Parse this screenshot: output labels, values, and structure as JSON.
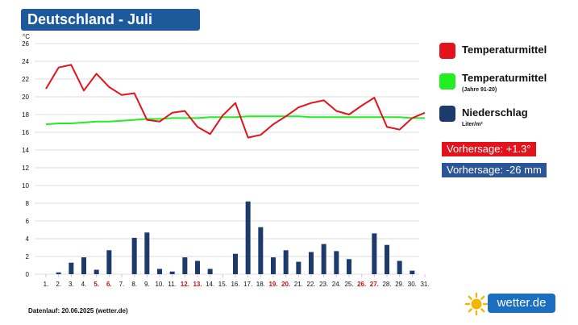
{
  "header": {
    "title": "Deutschland - Juli"
  },
  "legend": {
    "temp": {
      "label": "Temperaturmittel",
      "color": "#e3131b"
    },
    "clim": {
      "label": "Temperaturmittel",
      "sub": "(Jahre 91-20)",
      "color": "#22ee22"
    },
    "precip": {
      "label": "Niederschlag",
      "sub": "Liter/m²",
      "color": "#1c3a6b"
    }
  },
  "badges": {
    "temp": {
      "label": "Vorhersage: +1.3°",
      "color": "#e3131b"
    },
    "precip": {
      "label": "Vorhersage: -26 mm",
      "color": "#2b5597"
    }
  },
  "footer": {
    "text": "Datenlauf: 20.06.2025 (wetter.de)"
  },
  "logo": {
    "text": "wetter.de"
  },
  "chart_data": {
    "type": "line+bar",
    "unit": "°C",
    "ylim": [
      0,
      26
    ],
    "yticks": [
      0,
      2,
      4,
      6,
      8,
      10,
      12,
      14,
      16,
      18,
      20,
      22,
      24,
      26
    ],
    "grid": true,
    "categories": [
      "1.",
      "2.",
      "3.",
      "4.",
      "5.",
      "6.",
      "7.",
      "8.",
      "9.",
      "10.",
      "11.",
      "12.",
      "13.",
      "14.",
      "15.",
      "16.",
      "17.",
      "18.",
      "19.",
      "20.",
      "21.",
      "22.",
      "23.",
      "24.",
      "25.",
      "26.",
      "27.",
      "28.",
      "29.",
      "30.",
      "31."
    ],
    "weekend_days": [
      "5.",
      "6.",
      "12.",
      "13.",
      "19.",
      "20.",
      "26.",
      "27."
    ],
    "weekday_color": "#111111",
    "weekend_color": "#cc1111",
    "series": [
      {
        "name": "Temperaturmittel",
        "kind": "line",
        "color": "#e3131b",
        "values": [
          20.9,
          23.3,
          23.6,
          20.7,
          22.6,
          21.1,
          20.2,
          20.4,
          17.4,
          17.2,
          18.2,
          18.4,
          16.6,
          15.8,
          17.9,
          19.3,
          15.4,
          15.7,
          16.9,
          17.8,
          18.8,
          19.3,
          19.6,
          18.4,
          18.0,
          19.0,
          19.9,
          16.6,
          16.3,
          17.6,
          18.2
        ]
      },
      {
        "name": "Temperaturmittel (Jahre 91-20)",
        "kind": "line",
        "color": "#22ee22",
        "values": [
          16.9,
          17.0,
          17.0,
          17.1,
          17.2,
          17.2,
          17.3,
          17.4,
          17.5,
          17.5,
          17.6,
          17.6,
          17.6,
          17.7,
          17.7,
          17.7,
          17.8,
          17.8,
          17.8,
          17.8,
          17.8,
          17.7,
          17.7,
          17.7,
          17.7,
          17.7,
          17.7,
          17.7,
          17.7,
          17.6,
          17.6
        ]
      },
      {
        "name": "Niederschlag",
        "kind": "bar",
        "color": "#1c3a6b",
        "values": [
          0.0,
          0.2,
          1.3,
          1.9,
          0.5,
          2.7,
          0.0,
          4.1,
          4.7,
          0.6,
          0.3,
          1.9,
          1.5,
          0.6,
          0.0,
          2.3,
          8.2,
          5.3,
          1.9,
          2.7,
          1.4,
          2.5,
          3.4,
          2.6,
          1.7,
          0.0,
          4.6,
          3.3,
          1.5,
          0.4,
          0.0
        ]
      }
    ]
  }
}
